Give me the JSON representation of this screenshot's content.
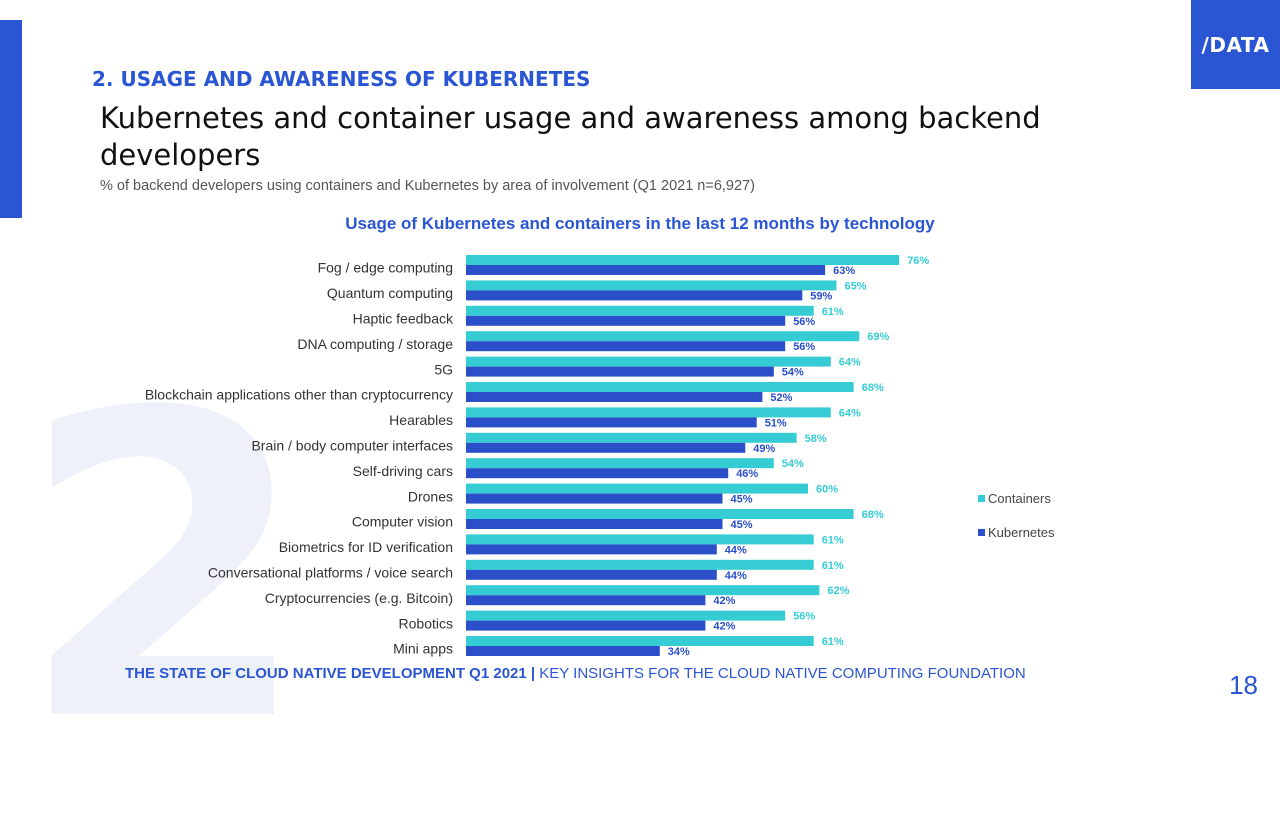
{
  "slide": {
    "section_number": "2",
    "section_title": "2.  USAGE AND AWARENESS OF KUBERNETES",
    "title": "Kubernetes and container usage and awareness among backend developers",
    "subtitle": "% of backend developers using containers and Kubernetes by area of involvement (Q1 2021 n=6,927)",
    "logo": "/DATA",
    "footer_bold": "THE STATE OF CLOUD NATIVE DEVELOPMENT Q1 2021 |",
    "footer_rest": " KEY INSIGHTS  FOR THE CLOUD NATIVE COMPUTING FOUNDATION",
    "page_number": "18"
  },
  "colors": {
    "accent": "#2b56d3",
    "containers": "#35ccd4",
    "kubernetes": "#2b4fc9"
  },
  "chart_data": {
    "type": "bar",
    "orientation": "horizontal",
    "title": "Usage of Kubernetes and containers in the last 12 months by technology",
    "categories": [
      "Fog / edge computing",
      "Quantum computing",
      "Haptic feedback",
      "DNA computing / storage",
      "5G",
      "Blockchain applications other than cryptocurrency",
      "Hearables",
      "Brain / body computer interfaces",
      "Self-driving cars",
      "Drones",
      "Computer vision",
      "Biometrics for ID verification",
      "Conversational platforms / voice search",
      "Cryptocurrencies (e.g. Bitcoin)",
      "Robotics",
      "Mini apps"
    ],
    "series": [
      {
        "name": "Containers",
        "values": [
          76,
          65,
          61,
          69,
          64,
          68,
          64,
          58,
          54,
          60,
          68,
          61,
          61,
          62,
          56,
          61
        ]
      },
      {
        "name": "Kubernetes",
        "values": [
          63,
          59,
          56,
          56,
          54,
          52,
          51,
          49,
          46,
          45,
          45,
          44,
          44,
          42,
          42,
          34
        ]
      }
    ],
    "value_suffix": "%",
    "xlim": [
      0,
      100
    ],
    "legend_position": "right",
    "grid": false
  }
}
